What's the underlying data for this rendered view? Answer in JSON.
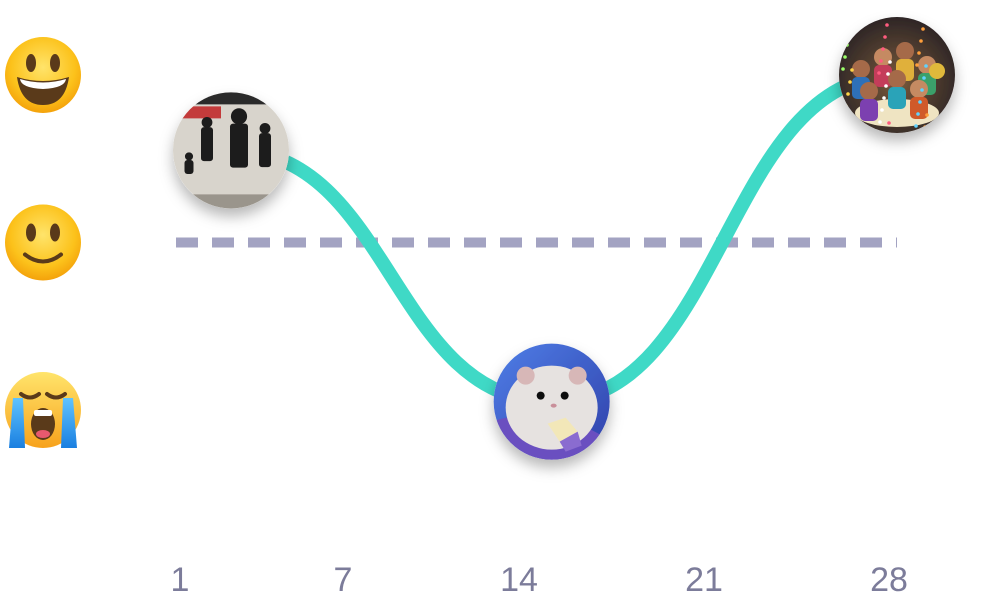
{
  "chart_data": {
    "type": "line",
    "title": "",
    "xlabel": "",
    "ylabel": "",
    "x": [
      1,
      7,
      14,
      21,
      28
    ],
    "x_ticks": [
      "1",
      "7",
      "14",
      "21",
      "28"
    ],
    "xlim": [
      1,
      28
    ],
    "ylim": [
      0,
      2
    ],
    "y_levels": [
      {
        "value": 2,
        "icon": "grinning-face-emoji"
      },
      {
        "value": 1,
        "icon": "slightly-smiling-face-emoji"
      },
      {
        "value": 0,
        "icon": "loudly-crying-face-emoji"
      }
    ],
    "baseline": {
      "value": 1,
      "style": "dashed",
      "color": "#a3a3c2"
    },
    "series": [
      {
        "color": "#3fd9c6",
        "points": [
          {
            "x": 1,
            "y": 1.55,
            "photo": "band-album-cover-photo"
          },
          {
            "x": 14,
            "y": 0.05,
            "photo": "hamster-eating-photo"
          },
          {
            "x": 28,
            "y": 2.0,
            "photo": "party-confetti-photo"
          }
        ]
      }
    ],
    "grid": false,
    "legend": "none"
  }
}
